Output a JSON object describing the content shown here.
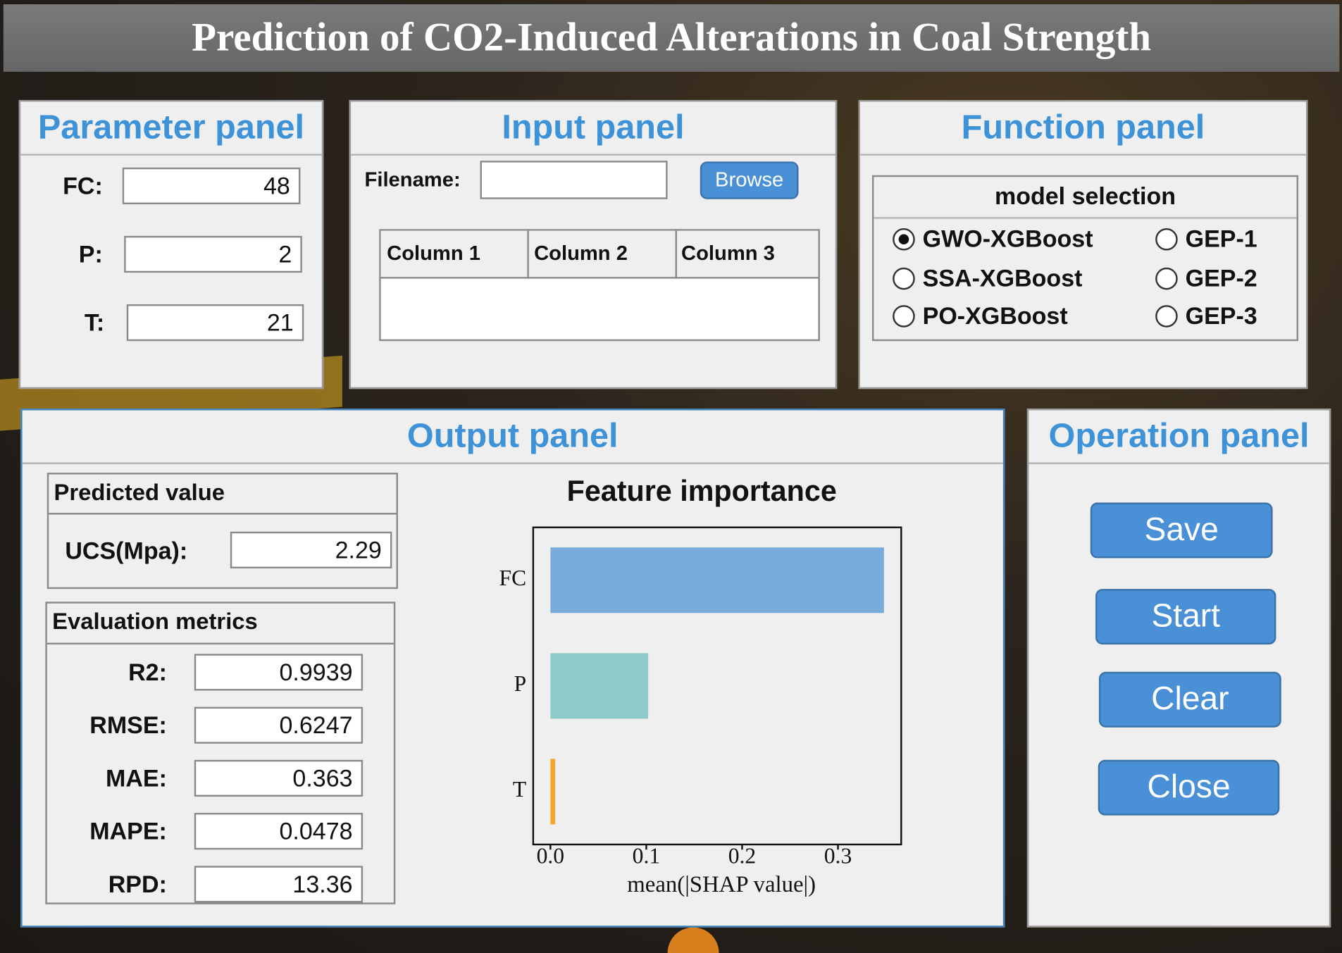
{
  "title": "Prediction of CO2-Induced Alterations in Coal Strength",
  "parameter_panel": {
    "title": "Parameter panel",
    "fields": [
      {
        "label": "FC:",
        "value": 48
      },
      {
        "label": "P:",
        "value": 2
      },
      {
        "label": "T:",
        "value": 21
      }
    ]
  },
  "input_panel": {
    "title": "Input panel",
    "filename_label": "Filename:",
    "browse": "Browse",
    "columns": [
      "Column 1",
      "Column 2",
      "Column 3"
    ]
  },
  "function_panel": {
    "title": "Function panel",
    "group": "model selection",
    "options": [
      "GWO-XGBoost",
      "SSA-XGBoost",
      "PO-XGBoost",
      "GEP-1",
      "GEP-2",
      "GEP-3"
    ],
    "selected": 0
  },
  "output_panel": {
    "title": "Output panel",
    "predicted": {
      "title": "Predicted value",
      "label": "UCS(Mpa):",
      "value": 2.29
    },
    "metrics": {
      "title": "Evaluation metrics",
      "items": [
        {
          "label": "R2:",
          "value": 0.9939
        },
        {
          "label": "RMSE:",
          "value": 0.6247
        },
        {
          "label": "MAE:",
          "value": 0.363
        },
        {
          "label": "MAPE:",
          "value": 0.0478
        },
        {
          "label": "RPD:",
          "value": 13.36
        }
      ]
    }
  },
  "operation_panel": {
    "title": "Operation panel",
    "buttons": [
      "Save",
      "Start",
      "Clear",
      "Close"
    ]
  },
  "chart_data": {
    "type": "bar",
    "title": "Feature importance",
    "categories": [
      "FC",
      "P",
      "T"
    ],
    "values": [
      0.348,
      0.102,
      0.005
    ],
    "colors": [
      "#79acdc",
      "#8ccbc8",
      "#f4a52a"
    ],
    "xlabel": "mean(|SHAP value|)",
    "xlim": [
      -0.018,
      0.366
    ],
    "xticks": [
      {
        "value": 0,
        "label": "0.0"
      },
      0.1,
      0.2,
      0.3
    ]
  }
}
